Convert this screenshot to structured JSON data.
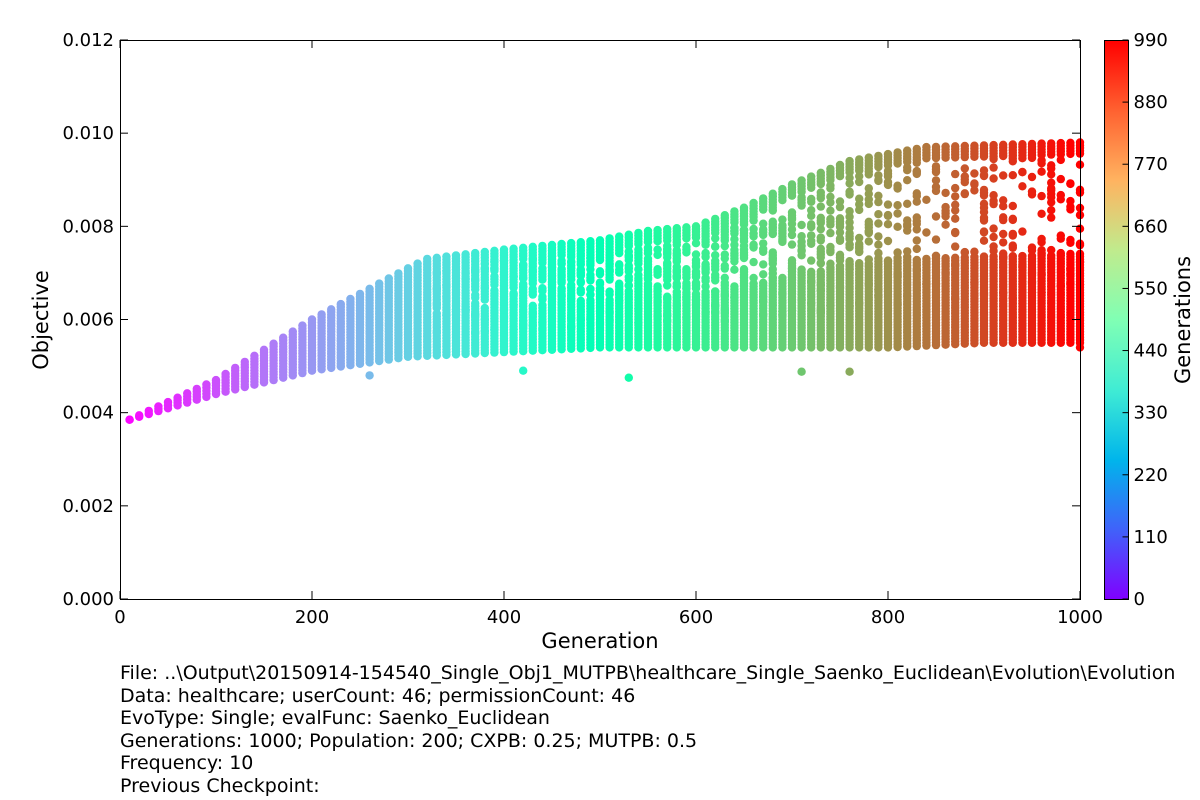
{
  "chart_data": {
    "type": "scatter",
    "title": "",
    "xlabel": "Generation",
    "ylabel": "Objective",
    "xlim": [
      0,
      1000
    ],
    "ylim": [
      0,
      0.012
    ],
    "x_ticks": [
      "0",
      "200",
      "400",
      "600",
      "800",
      "1000"
    ],
    "y_ticks": [
      "0.000",
      "0.002",
      "0.004",
      "0.006",
      "0.008",
      "0.010",
      "0.012"
    ],
    "grid": false,
    "colormap": "rainbow",
    "color_by": "generation",
    "colorbar": {
      "label": "Generations",
      "ticks": [
        "0",
        "110",
        "220",
        "330",
        "440",
        "550",
        "660",
        "770",
        "880",
        "990"
      ],
      "range": [
        0,
        990
      ]
    },
    "point_sampling": {
      "generation_start": 10,
      "generation_step": 10,
      "generation_end": 1000
    },
    "upper_band": [
      {
        "x": 10,
        "y": 0.00385
      },
      {
        "x": 100,
        "y": 0.0047
      },
      {
        "x": 200,
        "y": 0.006
      },
      {
        "x": 300,
        "y": 0.0071
      },
      {
        "x": 320,
        "y": 0.0073
      },
      {
        "x": 400,
        "y": 0.0075
      },
      {
        "x": 500,
        "y": 0.0077
      },
      {
        "x": 550,
        "y": 0.0079
      },
      {
        "x": 600,
        "y": 0.008
      },
      {
        "x": 650,
        "y": 0.0084
      },
      {
        "x": 700,
        "y": 0.0089
      },
      {
        "x": 760,
        "y": 0.0094
      },
      {
        "x": 840,
        "y": 0.0097
      },
      {
        "x": 1000,
        "y": 0.0098
      }
    ],
    "lower_band": [
      {
        "x": 10,
        "y": 0.00385
      },
      {
        "x": 100,
        "y": 0.0044
      },
      {
        "x": 200,
        "y": 0.0049
      },
      {
        "x": 300,
        "y": 0.0052
      },
      {
        "x": 400,
        "y": 0.0053
      },
      {
        "x": 500,
        "y": 0.0054
      },
      {
        "x": 600,
        "y": 0.0054
      },
      {
        "x": 700,
        "y": 0.0054
      },
      {
        "x": 800,
        "y": 0.0054
      },
      {
        "x": 900,
        "y": 0.0055
      },
      {
        "x": 1000,
        "y": 0.0055
      }
    ],
    "scattered_low_points": [
      {
        "x": 260,
        "y": 0.0048
      },
      {
        "x": 420,
        "y": 0.0049
      },
      {
        "x": 530,
        "y": 0.00475
      },
      {
        "x": 710,
        "y": 0.00488
      },
      {
        "x": 760,
        "y": 0.00488
      },
      {
        "x": 1000,
        "y": 0.0054
      }
    ]
  },
  "footer": {
    "file_line": "File: ..\\Output\\20150914-154540_Single_Obj1_MUTPB\\healthcare_Single_Saenko_Euclidean\\Evolution\\Evolution",
    "data_line": "Data: healthcare; userCount: 46; permissionCount: 46",
    "evotype_line": "EvoType: Single; evalFunc: Saenko_Euclidean",
    "generations_line": "Generations: 1000; Population: 200; CXPB: 0.25; MUTPB: 0.5",
    "frequency_line": "Frequency: 10",
    "checkpoint_line": "Previous Checkpoint:"
  }
}
